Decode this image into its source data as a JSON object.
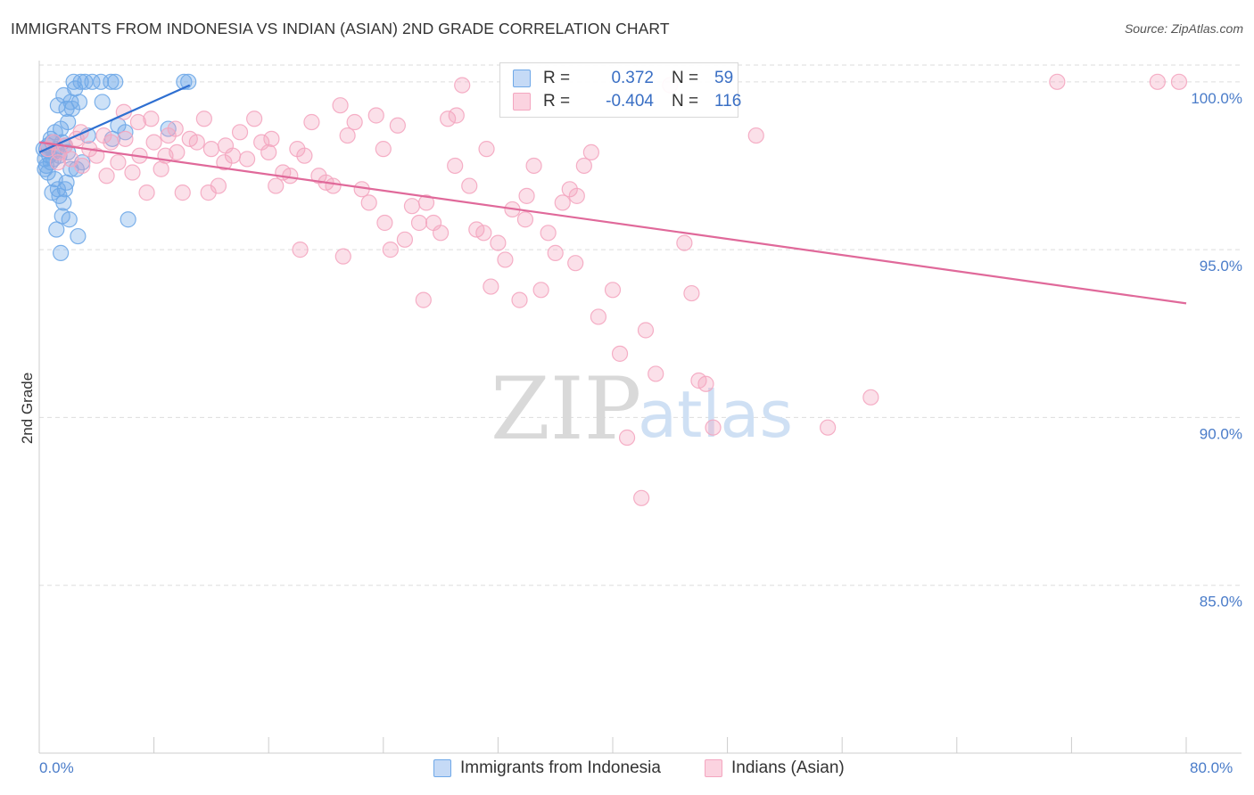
{
  "header": {
    "title": "IMMIGRANTS FROM INDONESIA VS INDIAN (ASIAN) 2ND GRADE CORRELATION CHART",
    "source": "Source: ZipAtlas.com"
  },
  "watermark": {
    "zip": "ZIP",
    "atlas": "atlas"
  },
  "legend": {
    "r_label": "R =",
    "n_label": "N =",
    "rows": [
      {
        "r": "0.372",
        "n": "59",
        "color": "#6fa8e8"
      },
      {
        "r": "-0.404",
        "n": "116",
        "color": "#f4a6c0"
      }
    ]
  },
  "bottom_legend": [
    {
      "label": "Immigrants from Indonesia",
      "color": "#6fa8e8"
    },
    {
      "label": "Indians (Asian)",
      "color": "#f4a6c0"
    }
  ],
  "chart_data": {
    "type": "scatter",
    "title": "IMMIGRANTS FROM INDONESIA VS INDIAN (ASIAN) 2ND GRADE CORRELATION CHART",
    "xlabel": "",
    "ylabel": "2nd Grade",
    "xlim": [
      0,
      80
    ],
    "ylim": [
      80,
      100.5
    ],
    "x_tick_labels": [
      "0.0%",
      "80.0%"
    ],
    "y_ticks": [
      85,
      90,
      95,
      100
    ],
    "y_tick_labels": [
      "85.0%",
      "90.0%",
      "95.0%",
      "100.0%"
    ],
    "grid": true,
    "series": [
      {
        "name": "Immigrants from Indonesia",
        "color": "#6fa8e8",
        "line_color": "#2e6fd1",
        "trend": {
          "x": [
            0,
            10.5
          ],
          "y": [
            97.9,
            99.9
          ]
        },
        "points": [
          [
            0.3,
            98.0
          ],
          [
            0.4,
            97.7
          ],
          [
            0.5,
            97.5
          ],
          [
            0.6,
            98.1
          ],
          [
            0.7,
            97.8
          ],
          [
            0.8,
            97.6
          ],
          [
            0.9,
            98.2
          ],
          [
            1.0,
            97.9
          ],
          [
            0.4,
            97.4
          ],
          [
            0.5,
            98.0
          ],
          [
            0.6,
            97.3
          ],
          [
            0.8,
            98.3
          ],
          [
            1.0,
            97.7
          ],
          [
            1.2,
            98.0
          ],
          [
            1.4,
            97.8
          ],
          [
            1.6,
            98.2
          ],
          [
            1.8,
            98.1
          ],
          [
            2.0,
            97.9
          ],
          [
            1.1,
            98.5
          ],
          [
            1.3,
            99.3
          ],
          [
            1.5,
            98.6
          ],
          [
            1.7,
            99.6
          ],
          [
            1.9,
            99.2
          ],
          [
            2.2,
            99.4
          ],
          [
            2.5,
            99.8
          ],
          [
            2.0,
            98.8
          ],
          [
            2.3,
            99.2
          ],
          [
            2.8,
            99.4
          ],
          [
            1.4,
            96.6
          ],
          [
            1.7,
            96.4
          ],
          [
            2.1,
            95.9
          ],
          [
            1.2,
            95.6
          ],
          [
            1.5,
            94.9
          ],
          [
            1.8,
            96.8
          ],
          [
            2.2,
            97.4
          ],
          [
            2.6,
            97.4
          ],
          [
            3.0,
            97.6
          ],
          [
            3.4,
            98.4
          ],
          [
            2.4,
            100.0
          ],
          [
            2.9,
            100.0
          ],
          [
            3.2,
            100.0
          ],
          [
            3.7,
            100.0
          ],
          [
            4.3,
            100.0
          ],
          [
            5.0,
            100.0
          ],
          [
            5.3,
            100.0
          ],
          [
            4.4,
            99.4
          ],
          [
            5.1,
            98.3
          ],
          [
            5.5,
            98.7
          ],
          [
            6.0,
            98.5
          ],
          [
            6.2,
            95.9
          ],
          [
            9.0,
            98.6
          ],
          [
            10.1,
            100.0
          ],
          [
            10.4,
            100.0
          ],
          [
            0.9,
            96.7
          ],
          [
            1.3,
            96.8
          ],
          [
            1.6,
            96.0
          ],
          [
            2.7,
            95.4
          ],
          [
            1.1,
            97.1
          ],
          [
            1.9,
            97.0
          ]
        ]
      },
      {
        "name": "Indians (Asian)",
        "color": "#f4a6c0",
        "line_color": "#e0699a",
        "trend": {
          "x": [
            0,
            80
          ],
          "y": [
            98.2,
            93.4
          ]
        },
        "points": [
          [
            0.6,
            98.0
          ],
          [
            1.0,
            98.2
          ],
          [
            1.4,
            97.9
          ],
          [
            1.8,
            98.1
          ],
          [
            2.2,
            97.7
          ],
          [
            2.6,
            98.3
          ],
          [
            3.0,
            97.5
          ],
          [
            3.5,
            98.0
          ],
          [
            4.0,
            97.8
          ],
          [
            4.5,
            98.4
          ],
          [
            5.0,
            98.2
          ],
          [
            5.5,
            97.6
          ],
          [
            6.0,
            98.3
          ],
          [
            6.5,
            97.3
          ],
          [
            7.0,
            97.8
          ],
          [
            7.5,
            96.7
          ],
          [
            8.0,
            98.2
          ],
          [
            8.5,
            97.4
          ],
          [
            9.0,
            98.4
          ],
          [
            9.5,
            98.6
          ],
          [
            10.0,
            96.7
          ],
          [
            10.5,
            98.3
          ],
          [
            11.0,
            98.2
          ],
          [
            11.5,
            98.9
          ],
          [
            12.0,
            98.0
          ],
          [
            12.5,
            96.9
          ],
          [
            13.0,
            98.1
          ],
          [
            13.5,
            97.8
          ],
          [
            14.0,
            98.5
          ],
          [
            14.5,
            97.7
          ],
          [
            15.0,
            98.9
          ],
          [
            15.5,
            98.2
          ],
          [
            16.0,
            97.9
          ],
          [
            16.5,
            96.9
          ],
          [
            17.0,
            97.3
          ],
          [
            17.5,
            97.2
          ],
          [
            18.0,
            98.0
          ],
          [
            18.5,
            97.8
          ],
          [
            19.0,
            98.8
          ],
          [
            19.5,
            97.2
          ],
          [
            20.0,
            97.0
          ],
          [
            20.5,
            96.9
          ],
          [
            21.0,
            99.3
          ],
          [
            21.5,
            98.4
          ],
          [
            22.0,
            98.8
          ],
          [
            22.5,
            96.8
          ],
          [
            23.0,
            96.4
          ],
          [
            23.5,
            99.0
          ],
          [
            24.0,
            98.0
          ],
          [
            24.5,
            95.0
          ],
          [
            25.0,
            98.7
          ],
          [
            25.5,
            95.3
          ],
          [
            26.0,
            96.3
          ],
          [
            26.5,
            95.8
          ],
          [
            27.0,
            96.4
          ],
          [
            27.5,
            95.8
          ],
          [
            28.0,
            95.5
          ],
          [
            28.5,
            98.9
          ],
          [
            29.0,
            97.5
          ],
          [
            29.5,
            99.9
          ],
          [
            30.0,
            96.9
          ],
          [
            30.5,
            95.6
          ],
          [
            31.0,
            95.5
          ],
          [
            31.5,
            93.9
          ],
          [
            32.0,
            95.2
          ],
          [
            32.5,
            94.7
          ],
          [
            33.0,
            96.2
          ],
          [
            33.5,
            93.5
          ],
          [
            34.0,
            96.6
          ],
          [
            34.5,
            97.5
          ],
          [
            35.0,
            93.8
          ],
          [
            35.5,
            95.5
          ],
          [
            36.0,
            94.9
          ],
          [
            36.5,
            96.4
          ],
          [
            37.0,
            96.8
          ],
          [
            37.5,
            96.6
          ],
          [
            38.0,
            97.5
          ],
          [
            38.5,
            97.9
          ],
          [
            39.0,
            93.0
          ],
          [
            40.0,
            93.8
          ],
          [
            40.5,
            91.9
          ],
          [
            41.0,
            89.4
          ],
          [
            42.0,
            87.6
          ],
          [
            43.0,
            91.3
          ],
          [
            44.0,
            99.9
          ],
          [
            45.0,
            95.2
          ],
          [
            45.5,
            93.7
          ],
          [
            46.5,
            91.0
          ],
          [
            47.0,
            89.7
          ],
          [
            50.0,
            98.4
          ],
          [
            55.0,
            89.7
          ],
          [
            58.0,
            90.6
          ],
          [
            71.0,
            100.0
          ],
          [
            78.0,
            100.0
          ],
          [
            79.5,
            100.0
          ],
          [
            26.8,
            93.5
          ],
          [
            21.2,
            94.8
          ],
          [
            18.2,
            95.0
          ],
          [
            1.3,
            97.6
          ],
          [
            2.9,
            98.5
          ],
          [
            4.7,
            97.2
          ],
          [
            7.8,
            98.9
          ],
          [
            11.8,
            96.7
          ],
          [
            16.2,
            98.3
          ],
          [
            24.1,
            95.8
          ],
          [
            29.1,
            99.0
          ],
          [
            12.9,
            97.6
          ],
          [
            9.6,
            97.9
          ],
          [
            5.9,
            99.1
          ],
          [
            31.2,
            98.0
          ],
          [
            37.4,
            94.6
          ],
          [
            33.9,
            95.9
          ],
          [
            42.3,
            92.6
          ],
          [
            46.0,
            91.1
          ],
          [
            8.8,
            97.8
          ],
          [
            6.9,
            98.8
          ]
        ]
      }
    ]
  }
}
